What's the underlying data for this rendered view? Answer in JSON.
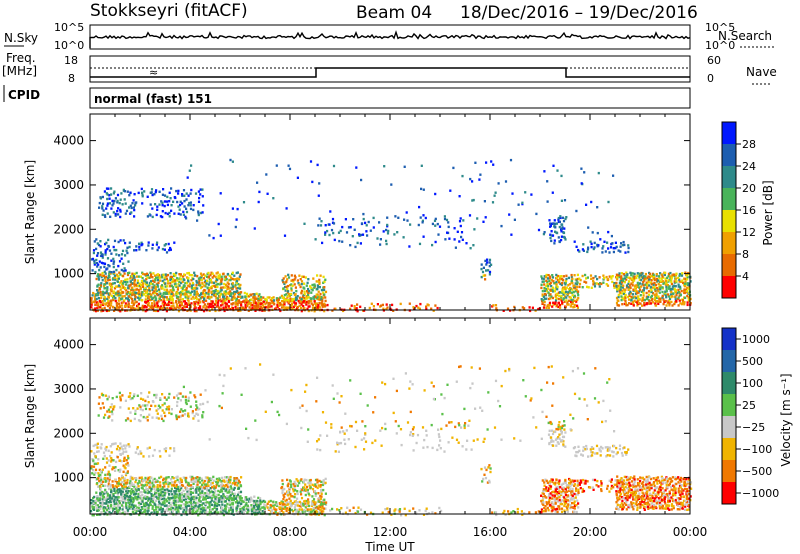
{
  "header": {
    "station": "Stokkseyri (fitACF)",
    "beam": "Beam 04",
    "date_range": "18/Dec/2016 – 19/Dec/2016"
  },
  "panels": {
    "nsky_label": "N.Sky",
    "nsky_ticks": [
      "10^5",
      "10^0"
    ],
    "nsearch_label": "N.Search",
    "freq_label_1": "Freq.",
    "freq_label_2": "[MHz]",
    "freq_ticks": [
      "18",
      "8"
    ],
    "nave_ticks": [
      "60",
      "0"
    ],
    "nave_label": "Nave",
    "cpid_label": "CPID",
    "cpid_text": "normal (fast) 151"
  },
  "chart_data": [
    {
      "type": "heatmap",
      "name": "Power",
      "ylabel": "Slant Range [km]",
      "xlabel": "Time UT",
      "ylim": [
        180,
        4600
      ],
      "yticks": [
        "1000",
        "2000",
        "3000",
        "4000"
      ],
      "xticks": [
        "00:00",
        "04:00",
        "08:00",
        "12:00",
        "16:00",
        "20:00",
        "00:00"
      ],
      "colorbar": {
        "label": "Power [dB]",
        "ticks": [
          "4",
          "8",
          "12",
          "16",
          "20",
          "24",
          "28"
        ],
        "colors": [
          "#0018ff",
          "#1d5eb0",
          "#2e8a8a",
          "#49b35a",
          "#e8e000",
          "#f0a000",
          "#e86b00",
          "#ff0000"
        ]
      }
    },
    {
      "type": "heatmap",
      "name": "Velocity",
      "ylabel": "Slant Range [km]",
      "xlabel": "Time UT",
      "ylim": [
        180,
        4600
      ],
      "yticks": [
        "1000",
        "2000",
        "3000",
        "4000"
      ],
      "xticks": [
        "00:00",
        "04:00",
        "08:00",
        "12:00",
        "16:00",
        "20:00",
        "00:00"
      ],
      "colorbar": {
        "label": "Velocity [m s⁻¹]",
        "ticks": [
          "1000",
          "500",
          "100",
          "25",
          "−25",
          "−100",
          "−500",
          "−1000"
        ],
        "colors": [
          "#1432c8",
          "#2366a8",
          "#2e8a6a",
          "#5ac04a",
          "#c8c8c8",
          "#f0b400",
          "#f07800",
          "#ff0000"
        ]
      }
    }
  ],
  "time_axis_label": "Time UT"
}
